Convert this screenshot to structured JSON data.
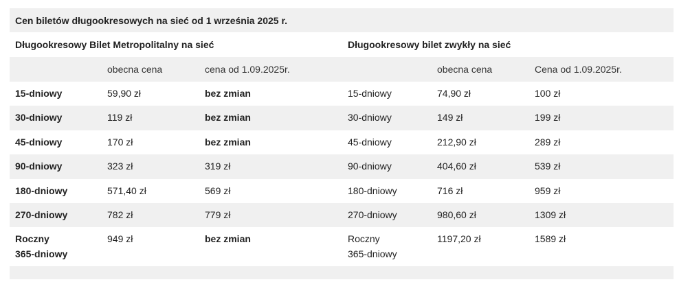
{
  "title": "Cen biletów długookresowych na sieć od 1 września 2025 r.",
  "sections": {
    "metro": "Długookresowy Bilet Metropolitalny na sieć",
    "regular": "Długookresowy bilet zwykły na sieć"
  },
  "headers": {
    "metro_current": "obecna cena",
    "metro_new": "cena od 1.09.2025r.",
    "regular_current": "obecna cena",
    "regular_new": "Cena od 1.09.2025r."
  },
  "rows": [
    {
      "metro_label": "15-dniowy",
      "metro_current": "59,90 zł",
      "metro_new": "bez zmian",
      "regular_label": "15-dniowy",
      "regular_current": "74,90 zł",
      "regular_new": "100 zł"
    },
    {
      "metro_label": "30-dniowy",
      "metro_current": "119 zł",
      "metro_new": "bez zmian",
      "regular_label": "30-dniowy",
      "regular_current": "149 zł",
      "regular_new": "199 zł"
    },
    {
      "metro_label": "45-dniowy",
      "metro_current": "170 zł",
      "metro_new": "bez zmian",
      "regular_label": "45-dniowy",
      "regular_current": "212,90 zł",
      "regular_new": "289 zł"
    },
    {
      "metro_label": "90-dniowy",
      "metro_current": "323 zł",
      "metro_new": "319 zł",
      "regular_label": "90-dniowy",
      "regular_current": "404,60 zł",
      "regular_new": "539 zł"
    },
    {
      "metro_label": "180-dniowy",
      "metro_current": "571,40 zł",
      "metro_new": "569 zł",
      "regular_label": "180-dniowy",
      "regular_current": "716 zł",
      "regular_new": "959 zł"
    },
    {
      "metro_label": "270-dniowy",
      "metro_current": "782 zł",
      "metro_new": "779 zł",
      "regular_label": "270-dniowy",
      "regular_current": "980,60 zł",
      "regular_new": "1309 zł"
    }
  ],
  "last_row": {
    "metro_label_1": "Roczny",
    "metro_label_2": "365-dniowy",
    "metro_current": "949 zł",
    "metro_new": "bez zmian",
    "regular_label_1": "Roczny",
    "regular_label_2": "365-dniowy",
    "regular_current": "1197,20 zł",
    "regular_new": "1589 zł"
  }
}
